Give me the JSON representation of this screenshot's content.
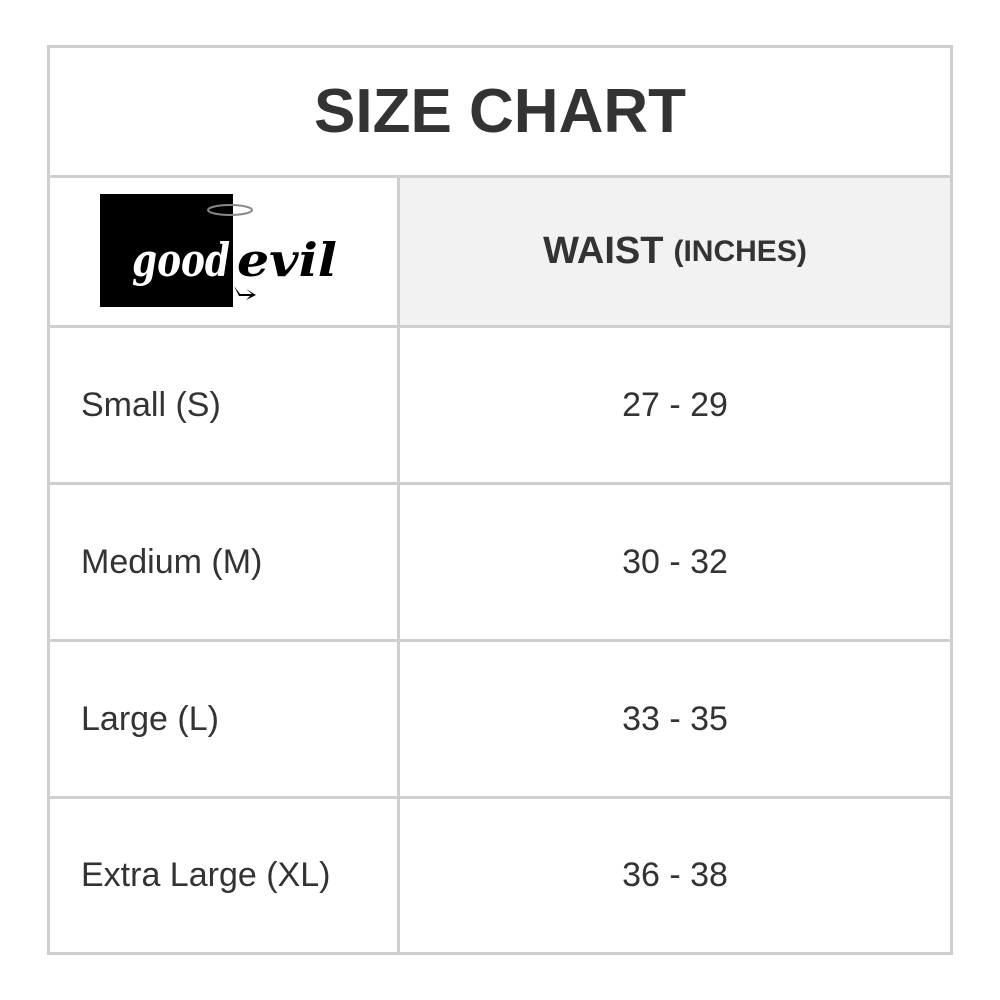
{
  "title": "SIZE CHART",
  "logo": {
    "text": "goodevil"
  },
  "header": {
    "measure": "WAIST",
    "unit": "(INCHES)"
  },
  "rows": [
    {
      "size": "Small (S)",
      "waist": "27 - 29"
    },
    {
      "size": "Medium (M)",
      "waist": "30 - 32"
    },
    {
      "size": "Large (L)",
      "waist": "33 - 35"
    },
    {
      "size": "Extra Large (XL)",
      "waist": "36 - 38"
    }
  ]
}
